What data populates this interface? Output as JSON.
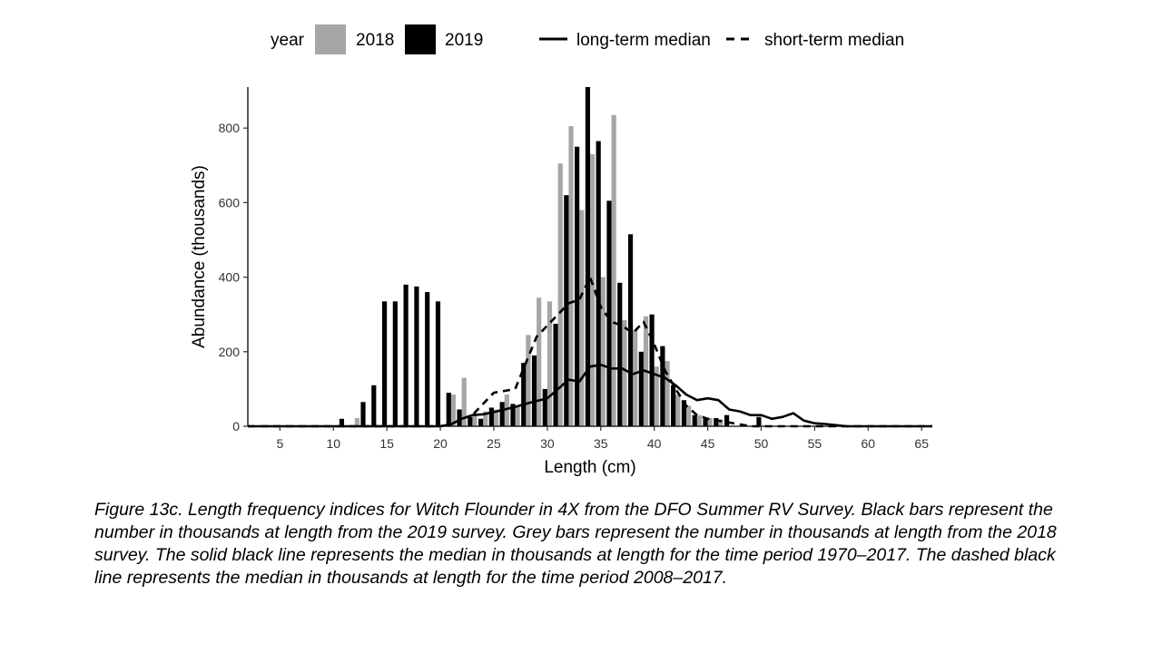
{
  "chart_data": {
    "type": "bar",
    "xlabel": "Length (cm)",
    "ylabel": "Abundance (thousands)",
    "xlim": [
      2,
      66
    ],
    "ylim": [
      0,
      910
    ],
    "x_ticks": [
      5,
      10,
      15,
      20,
      25,
      30,
      35,
      40,
      45,
      50,
      55,
      60,
      65
    ],
    "y_ticks": [
      0,
      200,
      400,
      600,
      800
    ],
    "grid": false,
    "legend": {
      "placement": "top",
      "fill_title": "year",
      "fill_entries": [
        "2018",
        "2019"
      ],
      "line_entries": [
        "long-term median",
        "short-term median"
      ]
    },
    "series": [
      {
        "name": "2018",
        "color": "#a6a6a6",
        "points": [
          [
            12,
            22
          ],
          [
            21,
            85
          ],
          [
            22,
            130
          ],
          [
            23,
            30
          ],
          [
            24,
            40
          ],
          [
            25,
            45
          ],
          [
            26,
            85
          ],
          [
            27,
            55
          ],
          [
            28,
            245
          ],
          [
            29,
            345
          ],
          [
            30,
            335
          ],
          [
            31,
            705
          ],
          [
            32,
            805
          ],
          [
            33,
            580
          ],
          [
            34,
            730
          ],
          [
            35,
            400
          ],
          [
            36,
            835
          ],
          [
            37,
            285
          ],
          [
            38,
            258
          ],
          [
            39,
            295
          ],
          [
            40,
            160
          ],
          [
            41,
            175
          ],
          [
            42,
            85
          ],
          [
            43,
            55
          ],
          [
            44,
            30
          ],
          [
            45,
            22
          ],
          [
            46,
            18
          ]
        ]
      },
      {
        "name": "2019",
        "color": "#000000",
        "points": [
          [
            11,
            20
          ],
          [
            13,
            65
          ],
          [
            14,
            110
          ],
          [
            15,
            335
          ],
          [
            16,
            335
          ],
          [
            17,
            380
          ],
          [
            18,
            375
          ],
          [
            19,
            360
          ],
          [
            20,
            335
          ],
          [
            21,
            90
          ],
          [
            22,
            45
          ],
          [
            23,
            25
          ],
          [
            24,
            20
          ],
          [
            25,
            50
          ],
          [
            26,
            65
          ],
          [
            27,
            60
          ],
          [
            28,
            170
          ],
          [
            29,
            190
          ],
          [
            30,
            100
          ],
          [
            31,
            275
          ],
          [
            32,
            620
          ],
          [
            33,
            750
          ],
          [
            34,
            910
          ],
          [
            35,
            765
          ],
          [
            36,
            605
          ],
          [
            37,
            385
          ],
          [
            38,
            515
          ],
          [
            39,
            200
          ],
          [
            40,
            300
          ],
          [
            41,
            215
          ],
          [
            42,
            110
          ],
          [
            43,
            70
          ],
          [
            44,
            30
          ],
          [
            45,
            20
          ],
          [
            46,
            22
          ],
          [
            47,
            30
          ],
          [
            50,
            25
          ]
        ]
      },
      {
        "name": "long-term median",
        "style": "solid",
        "points": [
          [
            2,
            0
          ],
          [
            20,
            0
          ],
          [
            21,
            5
          ],
          [
            22,
            20
          ],
          [
            23,
            30
          ],
          [
            24,
            32
          ],
          [
            25,
            38
          ],
          [
            26,
            45
          ],
          [
            27,
            52
          ],
          [
            28,
            60
          ],
          [
            29,
            68
          ],
          [
            30,
            75
          ],
          [
            31,
            100
          ],
          [
            32,
            125
          ],
          [
            33,
            120
          ],
          [
            34,
            160
          ],
          [
            35,
            165
          ],
          [
            36,
            155
          ],
          [
            37,
            155
          ],
          [
            38,
            140
          ],
          [
            39,
            150
          ],
          [
            40,
            140
          ],
          [
            41,
            130
          ],
          [
            42,
            110
          ],
          [
            43,
            85
          ],
          [
            44,
            70
          ],
          [
            45,
            75
          ],
          [
            46,
            70
          ],
          [
            47,
            45
          ],
          [
            48,
            40
          ],
          [
            49,
            30
          ],
          [
            50,
            30
          ],
          [
            51,
            20
          ],
          [
            52,
            25
          ],
          [
            53,
            35
          ],
          [
            54,
            15
          ],
          [
            55,
            8
          ],
          [
            56,
            6
          ],
          [
            57,
            3
          ],
          [
            58,
            0
          ],
          [
            66,
            0
          ]
        ]
      },
      {
        "name": "short-term median",
        "style": "dashed",
        "points": [
          [
            2,
            0
          ],
          [
            20,
            0
          ],
          [
            21,
            5
          ],
          [
            22,
            20
          ],
          [
            23,
            30
          ],
          [
            24,
            60
          ],
          [
            25,
            90
          ],
          [
            26,
            95
          ],
          [
            27,
            100
          ],
          [
            28,
            170
          ],
          [
            29,
            240
          ],
          [
            30,
            270
          ],
          [
            31,
            300
          ],
          [
            32,
            330
          ],
          [
            33,
            340
          ],
          [
            34,
            400
          ],
          [
            35,
            320
          ],
          [
            36,
            280
          ],
          [
            37,
            270
          ],
          [
            38,
            250
          ],
          [
            39,
            280
          ],
          [
            40,
            220
          ],
          [
            41,
            150
          ],
          [
            42,
            100
          ],
          [
            43,
            55
          ],
          [
            44,
            30
          ],
          [
            45,
            20
          ],
          [
            46,
            15
          ],
          [
            47,
            10
          ],
          [
            48,
            5
          ],
          [
            49,
            0
          ],
          [
            66,
            0
          ]
        ]
      }
    ]
  },
  "caption": "Figure 13c. Length frequency indices for Witch Flounder in 4X from the DFO Summer RV Survey. Black bars represent the number in thousands at length from the 2019 survey. Grey bars represent the number in thousands at length from the 2018 survey. The solid black line represents the median in thousands at length for the time period 1970–2017. The dashed black line represents the median in thousands at length for the time period 2008–2017."
}
